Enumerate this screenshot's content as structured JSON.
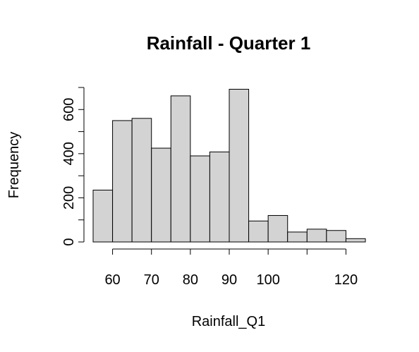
{
  "chart_data": {
    "type": "bar",
    "title": "Rainfall - Quarter 1",
    "xlabel": "Rainfall_Q1",
    "ylabel": "Frequency",
    "bins": [
      {
        "x0": 55,
        "x1": 60,
        "count": 235
      },
      {
        "x0": 60,
        "x1": 65,
        "count": 550
      },
      {
        "x0": 65,
        "x1": 70,
        "count": 560
      },
      {
        "x0": 70,
        "x1": 75,
        "count": 425
      },
      {
        "x0": 75,
        "x1": 80,
        "count": 662
      },
      {
        "x0": 80,
        "x1": 85,
        "count": 390
      },
      {
        "x0": 85,
        "x1": 90,
        "count": 408
      },
      {
        "x0": 90,
        "x1": 95,
        "count": 692
      },
      {
        "x0": 95,
        "x1": 100,
        "count": 95
      },
      {
        "x0": 100,
        "x1": 105,
        "count": 120
      },
      {
        "x0": 105,
        "x1": 110,
        "count": 45
      },
      {
        "x0": 110,
        "x1": 115,
        "count": 58
      },
      {
        "x0": 115,
        "x1": 120,
        "count": 52
      },
      {
        "x0": 120,
        "x1": 125,
        "count": 15
      }
    ],
    "xlim": [
      55,
      125
    ],
    "ylim": [
      0,
      700
    ],
    "x_axis_range": [
      60,
      120
    ],
    "x_ticks": [
      60,
      70,
      80,
      90,
      100,
      110,
      120
    ],
    "x_tick_labels": [
      "60",
      "70",
      "80",
      "90",
      "100",
      "",
      "120"
    ],
    "y_ticks": [
      0,
      100,
      200,
      300,
      400,
      500,
      600,
      700
    ],
    "y_tick_labels": [
      "0",
      "",
      "200",
      "",
      "400",
      "",
      "600",
      ""
    ],
    "bar_fill": "#d3d3d3",
    "bar_stroke": "#000000",
    "grid": false,
    "legend": "none"
  }
}
